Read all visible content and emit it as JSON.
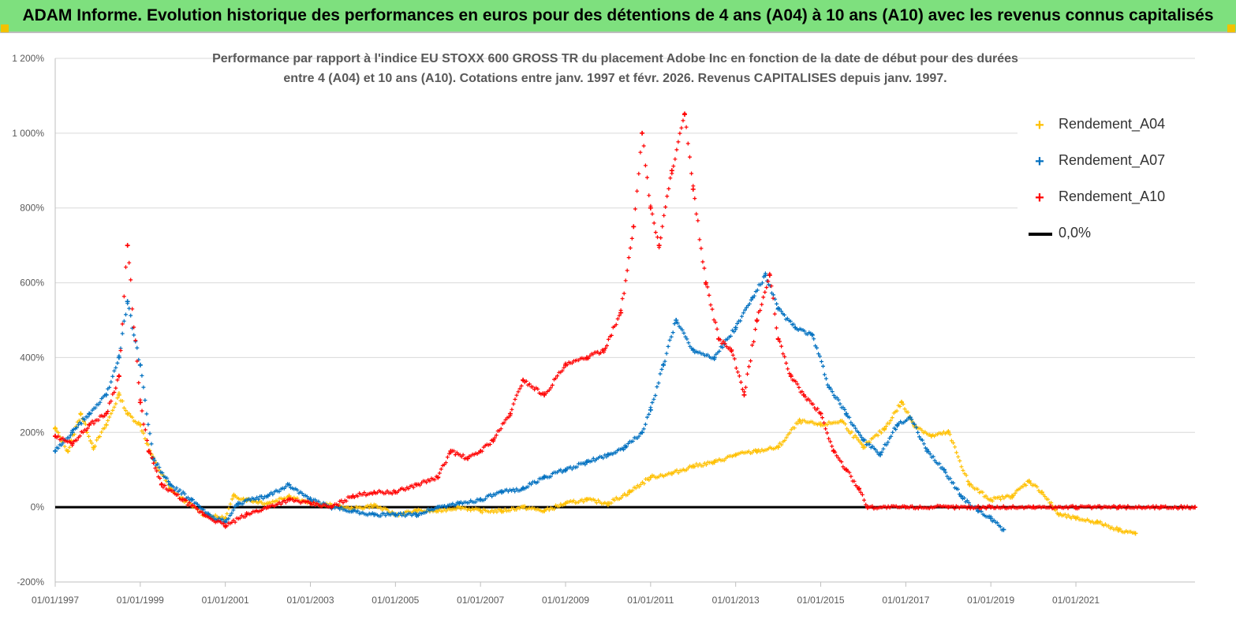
{
  "header": {
    "title": "ADAM Informe. Evolution historique des performances en euros pour des détentions de 4 ans (A04) à 10 ans (A10) avec les revenus connus capitalisés"
  },
  "chart_data": {
    "type": "scatter",
    "title_line1": "Performance par rapport à l'indice EU STOXX 600 GROSS TR  du placement Adobe Inc en fonction de la date de début pour des durées",
    "title_line2": "entre 4 (A04) et 10 ans (A10).  Cotations entre janv. 1997 et févr. 2026. Revenus  CAPITALISES depuis janv. 1997.",
    "xlabel": "",
    "ylabel": "",
    "x_range": [
      1997.0,
      2023.8
    ],
    "ylim": [
      -200,
      1200
    ],
    "y_ticks": [
      -200,
      0,
      200,
      400,
      600,
      800,
      1000,
      1200
    ],
    "y_tick_labels": [
      "-200%",
      "0%",
      "200%",
      "400%",
      "600%",
      "800%",
      "1 000%",
      "1 200%"
    ],
    "x_ticks": [
      1997,
      1999,
      2001,
      2003,
      2005,
      2007,
      2009,
      2011,
      2013,
      2015,
      2017,
      2019,
      2021
    ],
    "x_tick_labels": [
      "01/01/1997",
      "01/01/1999",
      "01/01/2001",
      "01/01/2003",
      "01/01/2005",
      "01/01/2007",
      "01/01/2009",
      "01/01/2011",
      "01/01/2013",
      "01/01/2015",
      "01/01/2017",
      "01/01/2019",
      "01/01/2021"
    ],
    "grid": "horizontal",
    "legend_position": "top-right",
    "series": [
      {
        "name": "Rendement_A04",
        "color": "#ffc000",
        "marker": "+",
        "x": [
          1997.0,
          1997.3,
          1997.6,
          1997.9,
          1998.2,
          1998.5,
          1998.7,
          1999.0,
          1999.3,
          1999.7,
          2000.0,
          2000.5,
          2001.0,
          2001.2,
          2001.5,
          2002.0,
          2002.5,
          2003.0,
          2003.5,
          2004.0,
          2004.5,
          2005.0,
          2005.5,
          2006.0,
          2006.5,
          2007.0,
          2007.5,
          2008.0,
          2008.5,
          2009.0,
          2009.5,
          2010.0,
          2010.5,
          2011.0,
          2011.5,
          2012.0,
          2012.5,
          2013.0,
          2013.5,
          2014.0,
          2014.5,
          2015.0,
          2015.5,
          2016.0,
          2016.5,
          2016.9,
          2017.2,
          2017.6,
          2018.0,
          2018.5,
          2019.0,
          2019.5,
          2019.9,
          2020.2,
          2020.6,
          2021.0,
          2021.5,
          2022.0,
          2022.4
        ],
        "y": [
          210,
          150,
          250,
          160,
          220,
          300,
          250,
          220,
          130,
          50,
          20,
          -20,
          -30,
          30,
          20,
          10,
          30,
          10,
          5,
          -5,
          5,
          -20,
          -10,
          -10,
          0,
          -10,
          -10,
          0,
          -10,
          10,
          20,
          10,
          40,
          80,
          90,
          110,
          120,
          140,
          150,
          160,
          230,
          220,
          230,
          160,
          210,
          280,
          220,
          190,
          200,
          60,
          20,
          30,
          70,
          40,
          -20,
          -30,
          -40,
          -60,
          -70
        ]
      },
      {
        "name": "Rendement_A07",
        "color": "#0070c0",
        "marker": "+",
        "x": [
          1997.0,
          1997.4,
          1997.8,
          1998.2,
          1998.5,
          1998.7,
          1999.0,
          1999.3,
          1999.7,
          2000.2,
          2000.6,
          2001.0,
          2001.3,
          2002.0,
          2002.5,
          2003.0,
          2003.5,
          2004.0,
          2004.5,
          2005.0,
          2005.5,
          2006.0,
          2006.5,
          2007.0,
          2007.5,
          2008.0,
          2008.5,
          2009.0,
          2009.5,
          2010.0,
          2010.4,
          2010.8,
          2011.0,
          2011.3,
          2011.6,
          2012.0,
          2012.5,
          2013.0,
          2013.4,
          2013.7,
          2014.0,
          2014.4,
          2014.8,
          2015.2,
          2015.6,
          2016.0,
          2016.4,
          2016.8,
          2017.1,
          2017.5,
          2017.9,
          2018.3,
          2018.7,
          2019.0,
          2019.3
        ],
        "y": [
          150,
          200,
          250,
          300,
          400,
          550,
          380,
          130,
          60,
          20,
          -20,
          -40,
          10,
          30,
          60,
          20,
          0,
          -10,
          -20,
          -20,
          -20,
          0,
          10,
          20,
          40,
          50,
          80,
          100,
          120,
          140,
          160,
          200,
          260,
          380,
          500,
          420,
          400,
          480,
          560,
          620,
          530,
          480,
          460,
          320,
          250,
          180,
          140,
          220,
          240,
          150,
          100,
          30,
          -10,
          -30,
          -60
        ]
      },
      {
        "name": "Rendement_A10",
        "color": "#ff0000",
        "marker": "+",
        "x": [
          1997.0,
          1997.4,
          1997.8,
          1998.2,
          1998.5,
          1998.7,
          1999.0,
          1999.2,
          1999.5,
          2000.0,
          2000.5,
          2001.0,
          2001.5,
          2002.0,
          2002.5,
          2003.0,
          2003.5,
          2004.0,
          2004.5,
          2005.0,
          2005.5,
          2006.0,
          2006.3,
          2006.7,
          2007.0,
          2007.3,
          2007.7,
          2008.0,
          2008.5,
          2009.0,
          2009.5,
          2009.9,
          2010.3,
          2010.6,
          2010.8,
          2011.0,
          2011.2,
          2011.5,
          2011.8,
          2012.0,
          2012.3,
          2012.6,
          2012.9,
          2013.2,
          2013.5,
          2013.8,
          2014.0,
          2014.3,
          2014.6,
          2015.0,
          2015.3,
          2015.6,
          2015.9,
          2016.1,
          2017.0,
          2018.0,
          2019.0,
          2020.0,
          2021.0,
          2022.0,
          2023.0,
          2023.8
        ],
        "y": [
          190,
          170,
          220,
          250,
          350,
          700,
          280,
          150,
          60,
          20,
          -20,
          -50,
          -20,
          0,
          20,
          10,
          0,
          30,
          40,
          40,
          60,
          80,
          150,
          130,
          150,
          180,
          250,
          340,
          300,
          380,
          400,
          420,
          520,
          750,
          1000,
          800,
          700,
          900,
          1050,
          850,
          600,
          450,
          420,
          300,
          500,
          620,
          450,
          350,
          300,
          250,
          150,
          100,
          50,
          0,
          0,
          0,
          0,
          0,
          0,
          0,
          0,
          0
        ]
      },
      {
        "name": "0,0%",
        "color": "#000000",
        "marker": "line",
        "x": [
          1997.0,
          2023.8
        ],
        "y": [
          0,
          0
        ]
      }
    ]
  }
}
